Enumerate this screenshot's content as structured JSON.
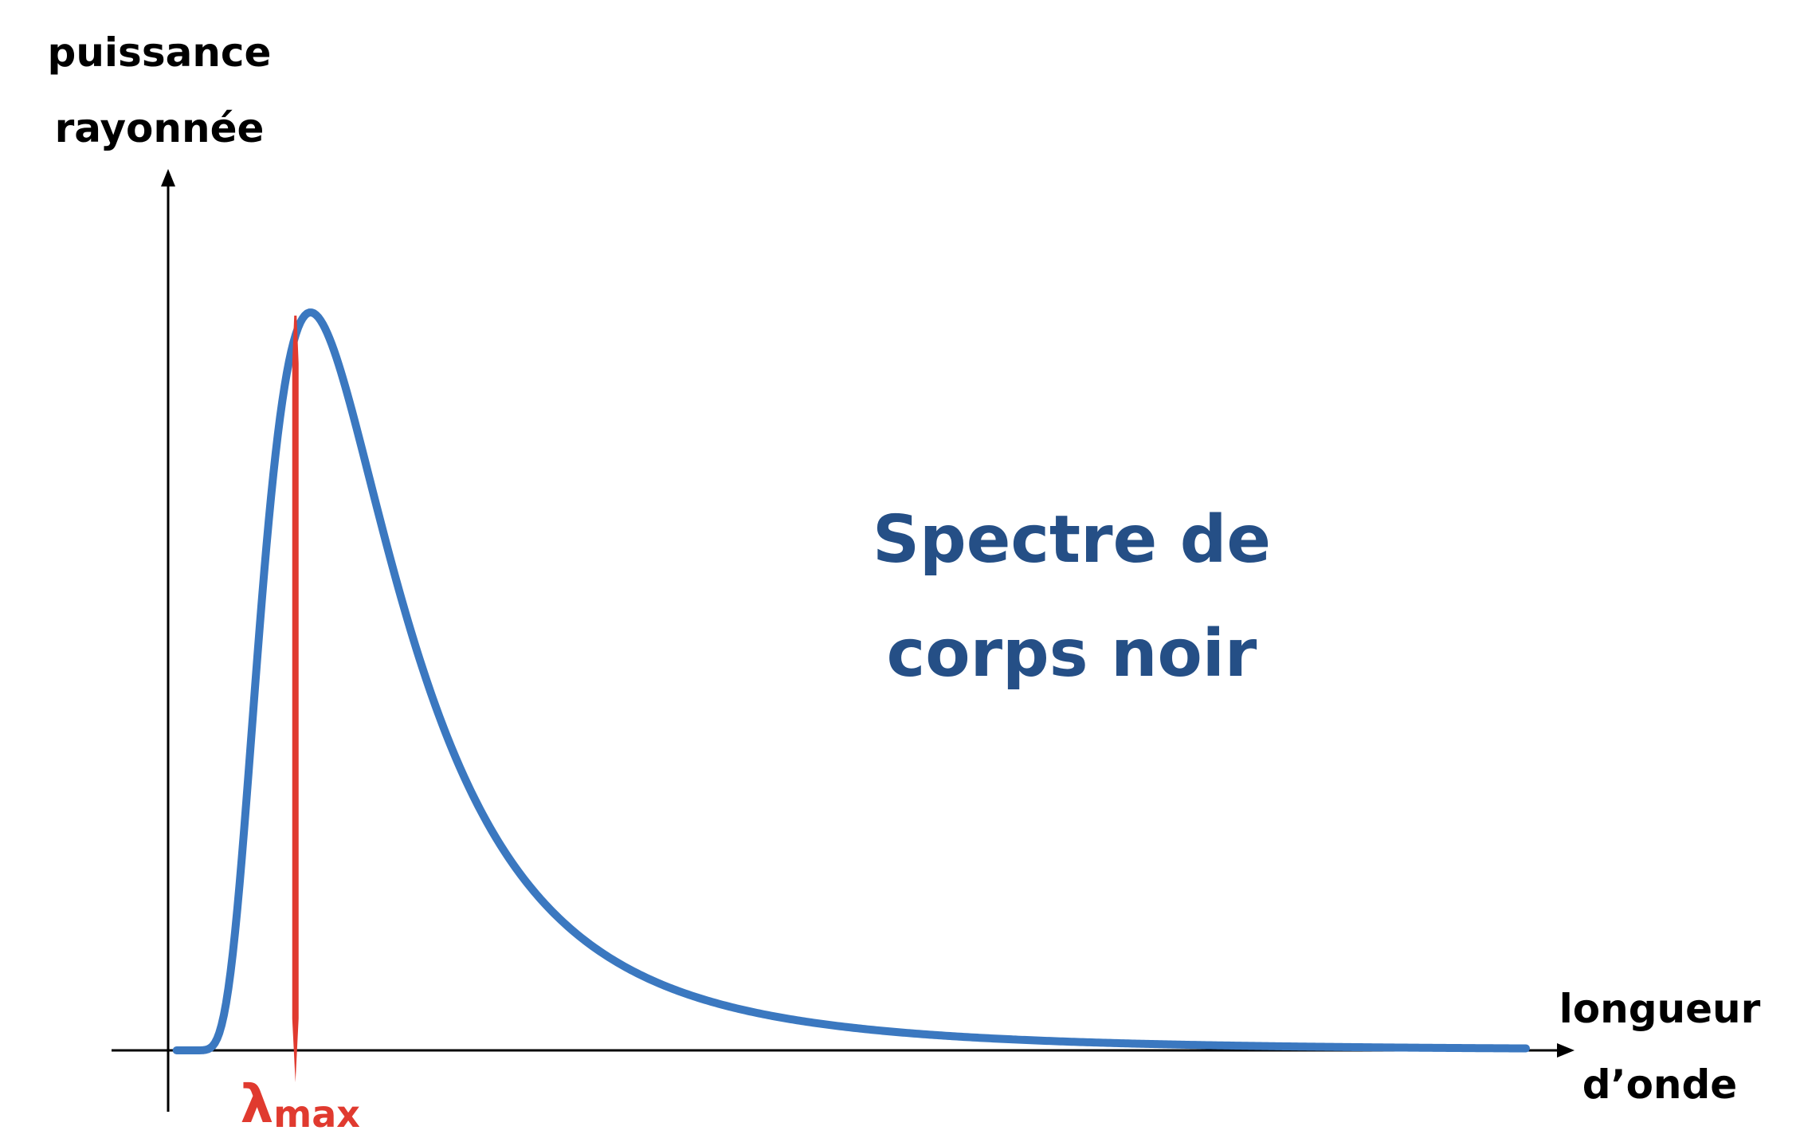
{
  "y_axis": {
    "label_line1": "puissance",
    "label_line2": "rayonnée"
  },
  "x_axis": {
    "label_line1": "longueur",
    "label_line2": "d’onde"
  },
  "curve": {
    "label_line1": "Spectre de",
    "label_line2": "corps noir",
    "color": "#3b78c0",
    "label_color": "#254f86"
  },
  "peak_marker": {
    "symbol": "λ",
    "subscript": "max",
    "color": "#e03a2f"
  },
  "chart_data": {
    "type": "line",
    "title": "",
    "xlabel": "longueur d’onde",
    "ylabel": "puissance rayonnée",
    "peak_label": "λmax",
    "series": [
      {
        "name": "Spectre de corps noir",
        "x": [
          0.03,
          0.05,
          0.07,
          0.1,
          0.15,
          0.2,
          0.25,
          0.3,
          0.35,
          0.4,
          0.45,
          0.5,
          0.6,
          0.7,
          0.8,
          1.0,
          1.2,
          1.5,
          1.8,
          2.2,
          2.6,
          3.0,
          3.5,
          4.0,
          4.5,
          4.8
        ],
        "values": [
          0.0,
          0.0,
          0.0001,
          0.0063,
          0.1227,
          0.3741,
          0.6233,
          0.8065,
          0.9211,
          0.9809,
          0.9998,
          0.9906,
          0.9227,
          0.8236,
          0.7196,
          0.5384,
          0.4036,
          0.2654,
          0.1811,
          0.1183,
          0.0807,
          0.0571,
          0.0378,
          0.0262,
          0.0188,
          0.0156
        ]
      }
    ],
    "peak_x": 0.45,
    "xlim": [
      0,
      4.8
    ],
    "ylim": [
      0,
      1.0
    ],
    "ticks_shown": false,
    "grid": false
  }
}
